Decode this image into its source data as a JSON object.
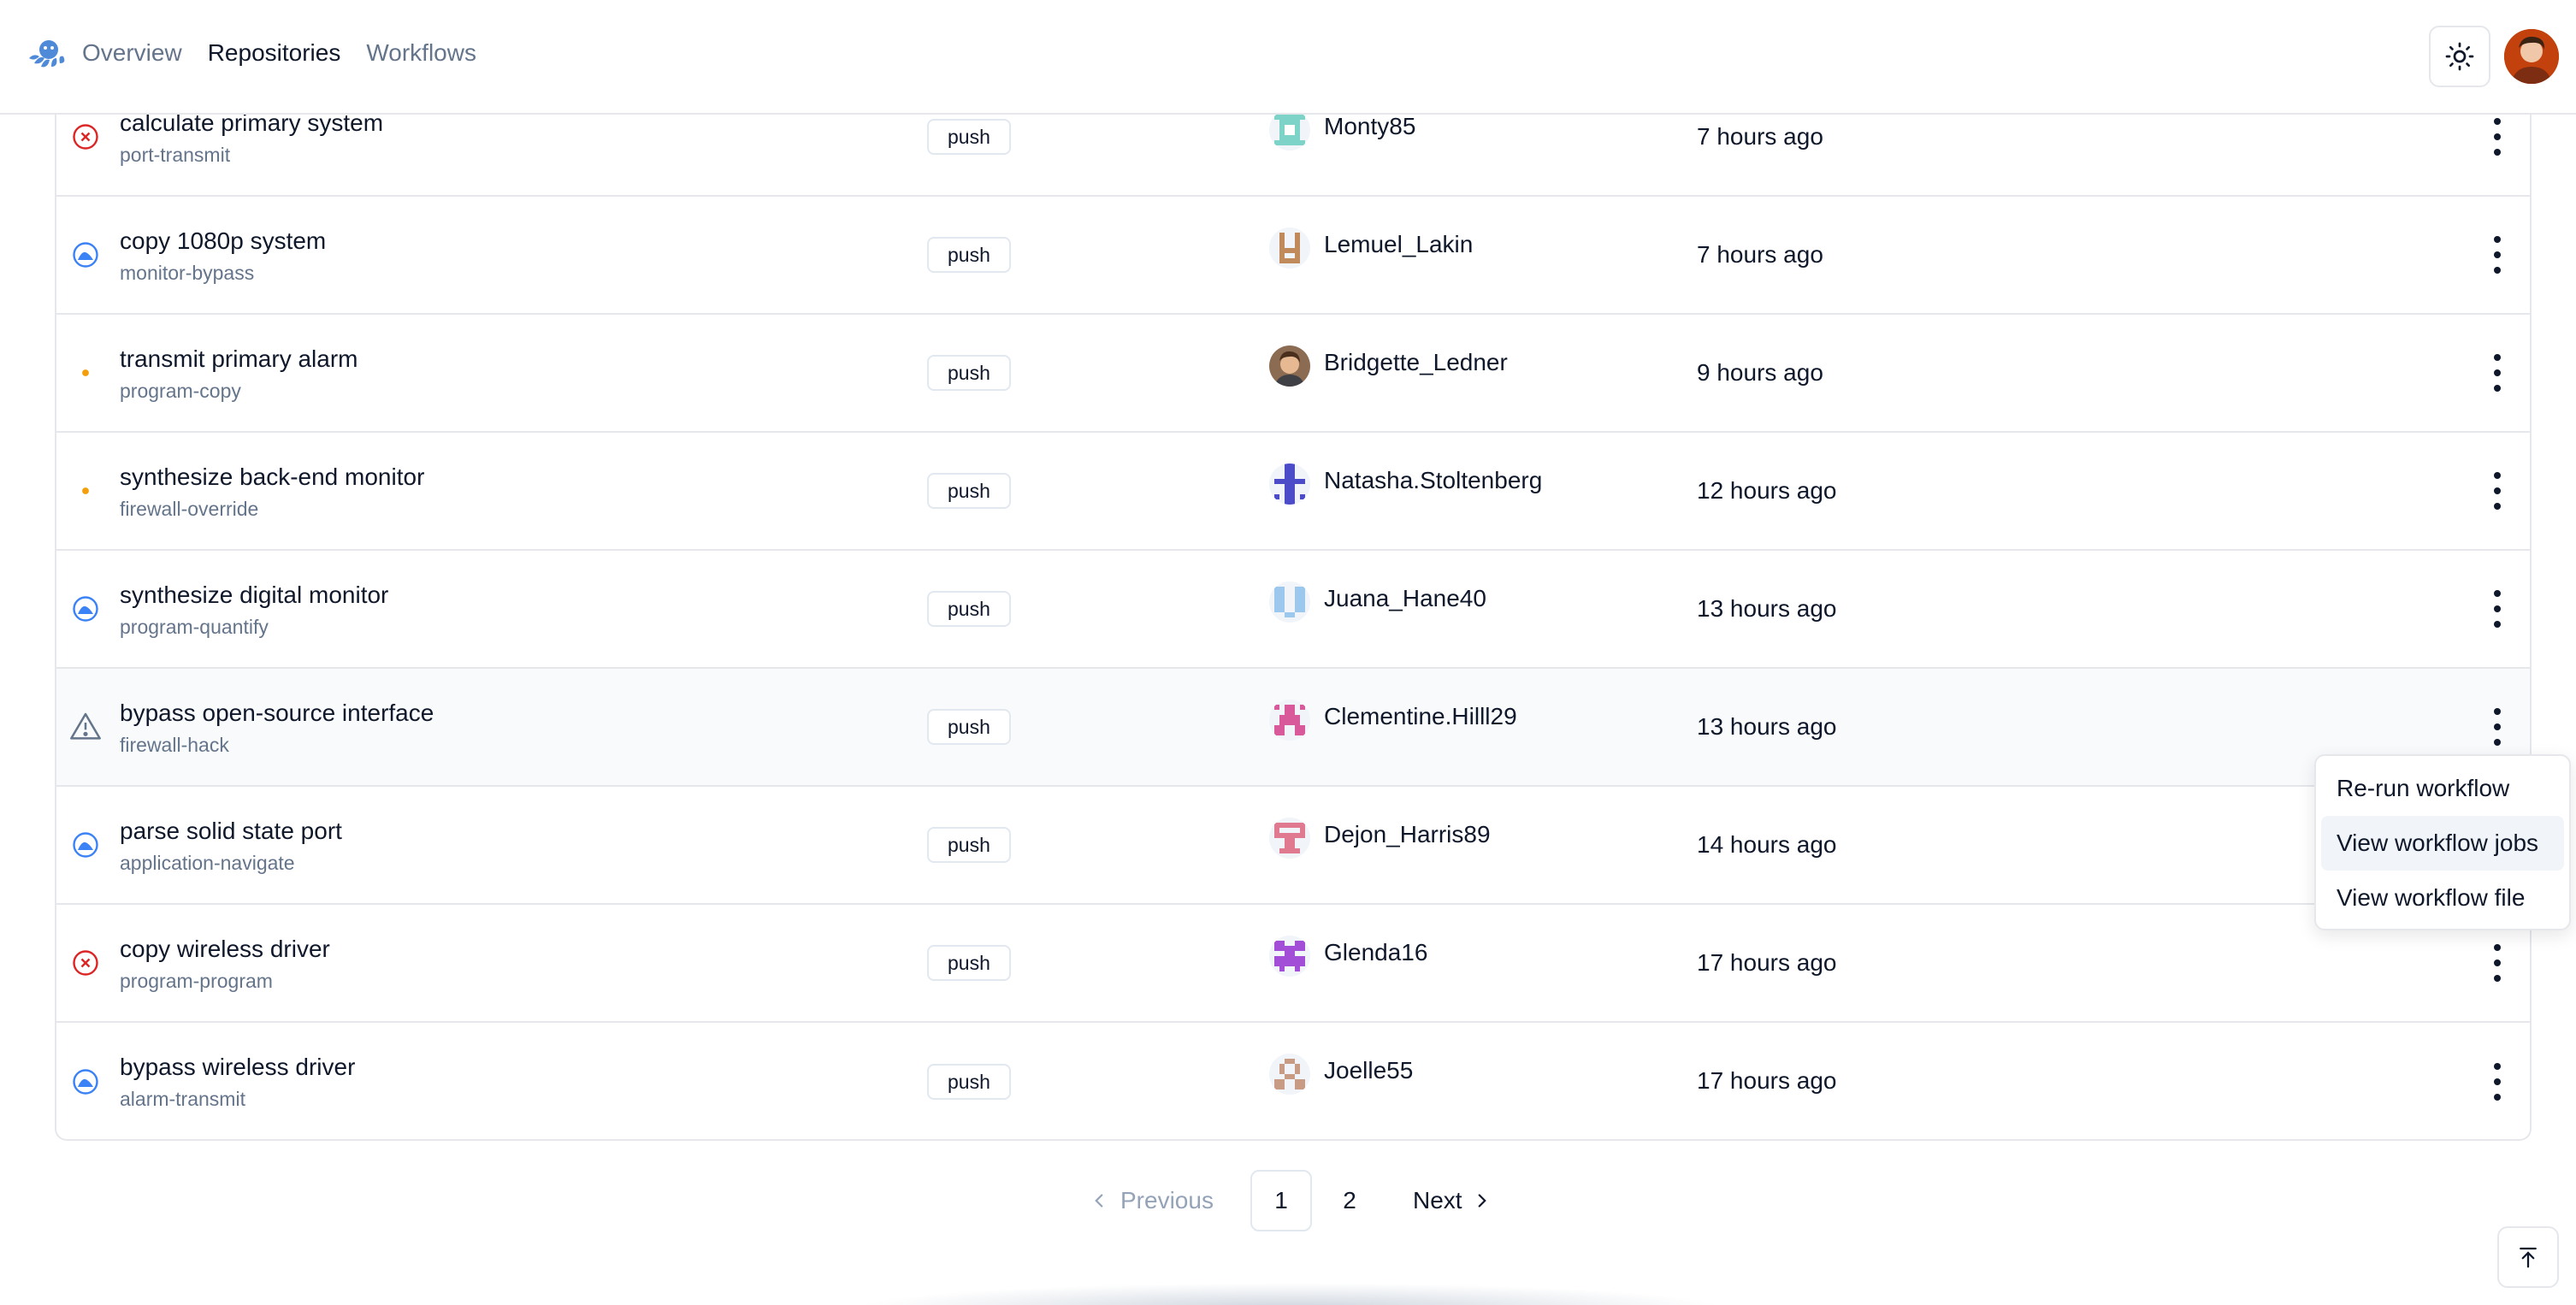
{
  "nav": {
    "items": [
      {
        "label": "Overview",
        "active": false
      },
      {
        "label": "Repositories",
        "active": true
      },
      {
        "label": "Workflows",
        "active": false
      }
    ],
    "logo_icon": "octopus-logo-icon",
    "theme_icon": "sun-icon"
  },
  "runs": [
    {
      "status": "failed",
      "title": "calculate primary system",
      "branch": "port-transmit",
      "event": "push",
      "user": "Monty85",
      "time": "7 hours ago",
      "avatar_color": "#7dd3c8"
    },
    {
      "status": "in-progress",
      "title": "copy 1080p system",
      "branch": "monitor-bypass",
      "event": "push",
      "user": "Lemuel_Lakin",
      "time": "7 hours ago",
      "avatar_color": "#c08a5a"
    },
    {
      "status": "queued",
      "title": "transmit primary alarm",
      "branch": "program-copy",
      "event": "push",
      "user": "Bridgette_Ledner",
      "time": "9 hours ago",
      "avatar_color": "#6b4a36"
    },
    {
      "status": "queued",
      "title": "synthesize back-end monitor",
      "branch": "firewall-override",
      "event": "push",
      "user": "Natasha.Stoltenberg",
      "time": "12 hours ago",
      "avatar_color": "#4c4cc9"
    },
    {
      "status": "in-progress",
      "title": "synthesize digital monitor",
      "branch": "program-quantify",
      "event": "push",
      "user": "Juana_Hane40",
      "time": "13 hours ago",
      "avatar_color": "#9cc8ee"
    },
    {
      "status": "warning",
      "title": "bypass open-source interface",
      "branch": "firewall-hack",
      "event": "push",
      "user": "Clementine.Hilll29",
      "time": "13 hours ago",
      "avatar_color": "#d85a9a"
    },
    {
      "status": "in-progress",
      "title": "parse solid state port",
      "branch": "application-navigate",
      "event": "push",
      "user": "Dejon_Harris89",
      "time": "14 hours ago",
      "avatar_color": "#e07a90"
    },
    {
      "status": "failed",
      "title": "copy wireless driver",
      "branch": "program-program",
      "event": "push",
      "user": "Glenda16",
      "time": "17 hours ago",
      "avatar_color": "#a24ed6"
    },
    {
      "status": "in-progress",
      "title": "bypass wireless driver",
      "branch": "alarm-transmit",
      "event": "push",
      "user": "Joelle55",
      "time": "17 hours ago",
      "avatar_color": "#c89b84"
    }
  ],
  "menu": {
    "items": [
      "Re-run workflow",
      "View workflow jobs",
      "View workflow file"
    ],
    "highlighted": "View workflow jobs"
  },
  "pagination": {
    "previous": "Previous",
    "pages": [
      "1",
      "2"
    ],
    "current": "1",
    "next": "Next"
  },
  "colors": {
    "failed": "#dc2626",
    "in_progress": "#3b82f6",
    "queued": "#f59e0b",
    "warning": "#64748b"
  }
}
